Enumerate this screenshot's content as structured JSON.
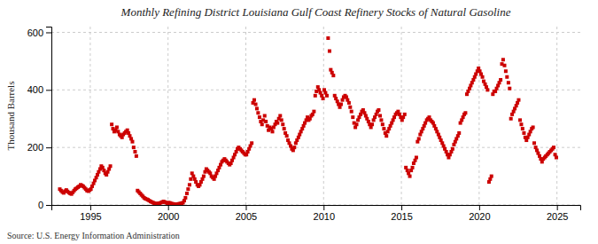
{
  "chart_data": {
    "type": "scatter",
    "title": "Monthly Refining District Louisiana Gulf Coast Refinery Stocks of Natural Gasoline",
    "ylabel": "Thousand Barrels",
    "annotations": [
      "Source: U.S. Energy Information Administration"
    ],
    "color": "#CC0000",
    "marker": "square",
    "grid": true,
    "xlim": [
      1992.5,
      2026.5
    ],
    "ylim": [
      0,
      620
    ],
    "xticks": [
      1995,
      2000,
      2005,
      2010,
      2015,
      2020,
      2025
    ],
    "yticks": [
      0,
      200,
      400,
      600
    ],
    "x": [
      1993.04,
      1993.12,
      1993.21,
      1993.29,
      1993.38,
      1993.46,
      1993.54,
      1993.63,
      1993.71,
      1993.79,
      1993.88,
      1993.96,
      1994.04,
      1994.12,
      1994.21,
      1994.29,
      1994.38,
      1994.46,
      1994.54,
      1994.63,
      1994.71,
      1994.79,
      1994.88,
      1994.96,
      1995.04,
      1995.12,
      1995.21,
      1995.29,
      1995.38,
      1995.46,
      1995.54,
      1995.63,
      1995.71,
      1995.79,
      1995.88,
      1995.96,
      1996.04,
      1996.12,
      1996.21,
      1996.29,
      1996.38,
      1996.46,
      1996.54,
      1996.63,
      1996.71,
      1996.79,
      1996.88,
      1996.96,
      1997.04,
      1997.12,
      1997.21,
      1997.29,
      1997.38,
      1997.46,
      1997.54,
      1997.63,
      1997.71,
      1997.79,
      1997.88,
      1997.96,
      1998.04,
      1998.12,
      1998.21,
      1998.29,
      1998.38,
      1998.46,
      1998.54,
      1998.63,
      1998.71,
      1998.79,
      1998.88,
      1998.96,
      1999.04,
      1999.12,
      1999.21,
      1999.29,
      1999.38,
      1999.46,
      1999.54,
      1999.63,
      1999.71,
      1999.79,
      1999.88,
      1999.96,
      2000.04,
      2000.12,
      2000.21,
      2000.29,
      2000.38,
      2000.46,
      2000.54,
      2000.63,
      2000.71,
      2000.79,
      2000.88,
      2000.96,
      2001.04,
      2001.12,
      2001.21,
      2001.29,
      2001.38,
      2001.46,
      2001.54,
      2001.63,
      2001.71,
      2001.79,
      2001.88,
      2001.96,
      2002.04,
      2002.12,
      2002.21,
      2002.29,
      2002.38,
      2002.46,
      2002.54,
      2002.63,
      2002.71,
      2002.79,
      2002.88,
      2002.96,
      2003.04,
      2003.12,
      2003.21,
      2003.29,
      2003.38,
      2003.46,
      2003.54,
      2003.63,
      2003.71,
      2003.79,
      2003.88,
      2003.96,
      2004.04,
      2004.12,
      2004.21,
      2004.29,
      2004.38,
      2004.46,
      2004.54,
      2004.63,
      2004.71,
      2004.79,
      2004.88,
      2004.96,
      2005.04,
      2005.12,
      2005.21,
      2005.29,
      2005.38,
      2005.46,
      2005.54,
      2005.63,
      2005.71,
      2005.79,
      2005.88,
      2005.96,
      2006.04,
      2006.12,
      2006.21,
      2006.29,
      2006.38,
      2006.46,
      2006.54,
      2006.63,
      2006.71,
      2006.79,
      2006.88,
      2006.96,
      2007.04,
      2007.12,
      2007.21,
      2007.29,
      2007.38,
      2007.46,
      2007.54,
      2007.63,
      2007.71,
      2007.79,
      2007.88,
      2007.96,
      2008.04,
      2008.12,
      2008.21,
      2008.29,
      2008.38,
      2008.46,
      2008.54,
      2008.63,
      2008.71,
      2008.79,
      2008.88,
      2008.96,
      2009.04,
      2009.12,
      2009.21,
      2009.29,
      2009.38,
      2009.46,
      2009.54,
      2009.63,
      2009.71,
      2009.79,
      2009.88,
      2009.96,
      2010.04,
      2010.12,
      2010.21,
      2010.29,
      2010.38,
      2010.46,
      2010.54,
      2010.63,
      2010.71,
      2010.79,
      2010.88,
      2010.96,
      2011.04,
      2011.12,
      2011.21,
      2011.29,
      2011.38,
      2011.46,
      2011.54,
      2011.63,
      2011.71,
      2011.79,
      2011.88,
      2011.96,
      2012.04,
      2012.12,
      2012.21,
      2012.29,
      2012.38,
      2012.46,
      2012.54,
      2012.63,
      2012.71,
      2012.79,
      2012.88,
      2012.96,
      2013.04,
      2013.12,
      2013.21,
      2013.29,
      2013.38,
      2013.46,
      2013.54,
      2013.63,
      2013.71,
      2013.79,
      2013.88,
      2013.96,
      2014.04,
      2014.12,
      2014.21,
      2014.29,
      2014.38,
      2014.46,
      2014.54,
      2014.63,
      2014.71,
      2014.79,
      2014.88,
      2014.96,
      2015.04,
      2015.12,
      2015.21,
      2015.29,
      2015.38,
      2015.46,
      2015.54,
      2015.63,
      2015.71,
      2015.79,
      2015.88,
      2015.96,
      2016.04,
      2016.12,
      2016.21,
      2016.29,
      2016.38,
      2016.46,
      2016.54,
      2016.63,
      2016.71,
      2016.79,
      2016.88,
      2016.96,
      2017.04,
      2017.12,
      2017.21,
      2017.29,
      2017.38,
      2017.46,
      2017.54,
      2017.63,
      2017.71,
      2017.79,
      2017.88,
      2017.96,
      2018.04,
      2018.12,
      2018.21,
      2018.29,
      2018.38,
      2018.46,
      2018.54,
      2018.63,
      2018.71,
      2018.79,
      2018.88,
      2018.96,
      2019.04,
      2019.12,
      2019.21,
      2019.29,
      2019.38,
      2019.46,
      2019.54,
      2019.63,
      2019.71,
      2019.79,
      2019.88,
      2019.96,
      2020.04,
      2020.12,
      2020.21,
      2020.29,
      2020.38,
      2020.46,
      2020.54,
      2020.63,
      2020.71,
      2020.79,
      2020.88,
      2020.96,
      2021.04,
      2021.12,
      2021.21,
      2021.29,
      2021.38,
      2021.46,
      2021.54,
      2021.63,
      2021.71,
      2021.79,
      2021.88,
      2021.96,
      2022.04,
      2022.12,
      2022.21,
      2022.29,
      2022.38,
      2022.46,
      2022.54,
      2022.63,
      2022.71,
      2022.79,
      2022.88,
      2022.96,
      2023.04,
      2023.12,
      2023.21,
      2023.29,
      2023.38,
      2023.46,
      2023.54,
      2023.63,
      2023.71,
      2023.79,
      2023.88,
      2023.96,
      2024.04,
      2024.12,
      2024.21,
      2024.29,
      2024.38,
      2024.46,
      2024.54,
      2024.63,
      2024.71,
      2024.79,
      2024.88,
      2024.96
    ],
    "values": [
      55,
      50,
      45,
      42,
      48,
      52,
      47,
      43,
      40,
      38,
      44,
      50,
      55,
      58,
      62,
      65,
      70,
      68,
      65,
      60,
      55,
      50,
      48,
      52,
      55,
      65,
      75,
      85,
      95,
      105,
      115,
      125,
      135,
      130,
      120,
      110,
      105,
      115,
      125,
      135,
      280,
      265,
      255,
      260,
      270,
      255,
      245,
      240,
      235,
      245,
      250,
      255,
      260,
      250,
      240,
      230,
      220,
      200,
      185,
      170,
      50,
      45,
      40,
      35,
      30,
      25,
      22,
      20,
      18,
      15,
      12,
      10,
      8,
      6,
      5,
      4,
      5,
      6,
      8,
      10,
      12,
      10,
      8,
      6,
      8,
      7,
      5,
      4,
      3,
      2,
      2,
      3,
      4,
      5,
      6,
      8,
      15,
      25,
      40,
      55,
      70,
      90,
      110,
      100,
      90,
      80,
      70,
      65,
      70,
      80,
      90,
      100,
      115,
      125,
      120,
      115,
      110,
      100,
      95,
      90,
      100,
      110,
      120,
      130,
      140,
      150,
      155,
      160,
      155,
      150,
      145,
      140,
      145,
      155,
      165,
      175,
      185,
      195,
      200,
      195,
      190,
      185,
      180,
      175,
      175,
      185,
      195,
      205,
      215,
      355,
      365,
      350,
      335,
      320,
      305,
      290,
      280,
      295,
      310,
      290,
      275,
      260,
      270,
      265,
      255,
      270,
      280,
      290,
      285,
      300,
      310,
      295,
      280,
      265,
      250,
      240,
      225,
      215,
      205,
      195,
      190,
      200,
      215,
      225,
      235,
      245,
      255,
      265,
      275,
      285,
      295,
      305,
      295,
      300,
      310,
      315,
      325,
      380,
      395,
      410,
      400,
      390,
      380,
      370,
      400,
      390,
      380,
      580,
      535,
      470,
      460,
      450,
      380,
      370,
      360,
      350,
      340,
      350,
      365,
      375,
      380,
      375,
      365,
      355,
      340,
      325,
      305,
      285,
      270,
      280,
      295,
      305,
      315,
      325,
      330,
      320,
      310,
      300,
      290,
      280,
      270,
      280,
      295,
      305,
      315,
      325,
      330,
      310,
      295,
      280,
      265,
      250,
      240,
      255,
      265,
      275,
      285,
      295,
      305,
      315,
      320,
      325,
      315,
      305,
      295,
      305,
      315,
      130,
      120,
      110,
      100,
      120,
      130,
      145,
      155,
      165,
      220,
      230,
      245,
      255,
      265,
      275,
      285,
      295,
      300,
      305,
      295,
      290,
      285,
      275,
      265,
      255,
      245,
      235,
      225,
      215,
      205,
      195,
      185,
      175,
      165,
      175,
      185,
      195,
      210,
      220,
      230,
      240,
      250,
      285,
      295,
      305,
      315,
      320,
      385,
      395,
      405,
      415,
      425,
      435,
      445,
      455,
      465,
      475,
      465,
      455,
      445,
      430,
      420,
      410,
      400,
      80,
      90,
      100,
      385,
      395,
      395,
      405,
      415,
      425,
      435,
      490,
      505,
      485,
      465,
      445,
      425,
      405,
      300,
      315,
      325,
      335,
      345,
      355,
      365,
      295,
      280,
      265,
      250,
      235,
      225,
      235,
      245,
      255,
      265,
      270,
      215,
      200,
      190,
      180,
      170,
      160,
      150,
      160,
      165,
      170,
      175,
      180,
      185,
      190,
      195,
      200,
      175,
      165
    ]
  }
}
